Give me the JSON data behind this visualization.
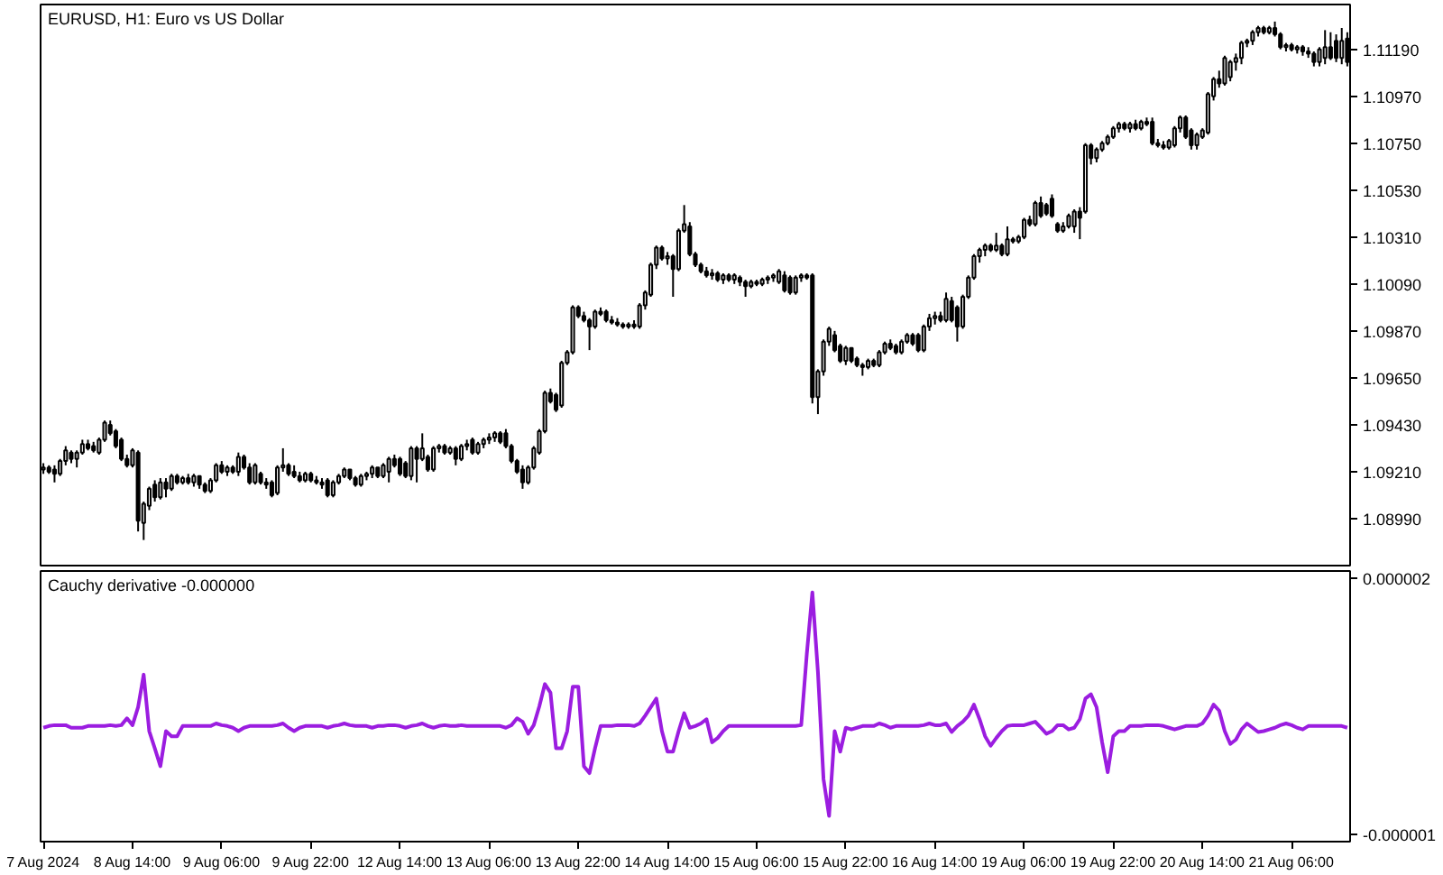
{
  "chart_data": [
    {
      "type": "candlestick",
      "title": "EURUSD, H1: Euro vs US Dollar",
      "color": "#000000",
      "categories": [
        "7 Aug 2024",
        null,
        null,
        null,
        null,
        null,
        null,
        null,
        null,
        null,
        null,
        null,
        null,
        null,
        null,
        null,
        "8 Aug 14:00",
        null,
        null,
        null,
        null,
        null,
        null,
        null,
        null,
        null,
        null,
        null,
        null,
        null,
        null,
        null,
        "9 Aug 06:00",
        null,
        null,
        null,
        null,
        null,
        null,
        null,
        null,
        null,
        null,
        null,
        null,
        null,
        null,
        null,
        "9 Aug 22:00",
        null,
        null,
        null,
        null,
        null,
        null,
        null,
        null,
        null,
        null,
        null,
        null,
        null,
        null,
        null,
        "12 Aug 14:00",
        null,
        null,
        null,
        null,
        null,
        null,
        null,
        null,
        null,
        null,
        null,
        null,
        null,
        null,
        null,
        "13 Aug 06:00",
        null,
        null,
        null,
        null,
        null,
        null,
        null,
        null,
        null,
        null,
        null,
        null,
        null,
        null,
        null,
        "13 Aug 22:00",
        null,
        null,
        null,
        null,
        null,
        null,
        null,
        null,
        null,
        null,
        null,
        null,
        null,
        null,
        null,
        "14 Aug 14:00",
        null,
        null,
        null,
        null,
        null,
        null,
        null,
        null,
        null,
        null,
        null,
        null,
        null,
        null,
        null,
        "15 Aug 06:00",
        null,
        null,
        null,
        null,
        null,
        null,
        null,
        null,
        null,
        null,
        null,
        null,
        null,
        null,
        null,
        "15 Aug 22:00",
        null,
        null,
        null,
        null,
        null,
        null,
        null,
        null,
        null,
        null,
        null,
        null,
        null,
        null,
        null,
        "16 Aug 14:00",
        null,
        null,
        null,
        null,
        null,
        null,
        null,
        null,
        null,
        null,
        null,
        null,
        null,
        null,
        null,
        "19 Aug 06:00",
        null,
        null,
        null,
        null,
        null,
        null,
        null,
        null,
        null,
        null,
        null,
        null,
        null,
        null,
        null,
        "19 Aug 22:00",
        null,
        null,
        null,
        null,
        null,
        null,
        null,
        null,
        null,
        null,
        null,
        null,
        null,
        null,
        null,
        "20 Aug 14:00",
        null,
        null,
        null,
        null,
        null,
        null,
        null,
        null,
        null,
        null,
        null,
        null,
        null,
        null,
        null,
        "21 Aug 06:00",
        null,
        null,
        null,
        null,
        null,
        null,
        null,
        null,
        null,
        null
      ],
      "ohlc": [
        [
          1.0922,
          1.0925,
          1.092,
          1.0923
        ],
        [
          1.0923,
          1.0924,
          1.092,
          1.0921
        ],
        [
          1.0922,
          1.0924,
          1.0916,
          1.092
        ],
        [
          1.092,
          1.0927,
          1.0919,
          1.0926
        ],
        [
          1.0926,
          1.0933,
          1.0924,
          1.0931
        ],
        [
          1.093,
          1.0931,
          1.0925,
          1.0927
        ],
        [
          1.0927,
          1.0931,
          1.0923,
          1.093
        ],
        [
          1.093,
          1.0936,
          1.0929,
          1.0934
        ],
        [
          1.0934,
          1.0936,
          1.0931,
          1.0932
        ],
        [
          1.0933,
          1.0935,
          1.093,
          1.0931
        ],
        [
          1.093,
          1.0937,
          1.0929,
          1.0936
        ],
        [
          1.0936,
          1.0945,
          1.0935,
          1.0944
        ],
        [
          1.0943,
          1.0945,
          1.0938,
          1.0939
        ],
        [
          1.094,
          1.0941,
          1.0932,
          1.0933
        ],
        [
          1.0936,
          1.0937,
          1.0926,
          1.0927
        ],
        [
          1.0927,
          1.0929,
          1.0923,
          1.0924
        ],
        [
          1.0924,
          1.0932,
          1.0923,
          1.0931
        ],
        [
          1.093,
          1.0931,
          1.0893,
          1.0898
        ],
        [
          1.0897,
          1.0907,
          1.0889,
          1.0906
        ],
        [
          1.0905,
          1.0914,
          1.0903,
          1.0913
        ],
        [
          1.0915,
          1.0917,
          1.0907,
          1.0909
        ],
        [
          1.0909,
          1.0918,
          1.0908,
          1.0916
        ],
        [
          1.0916,
          1.0918,
          1.0909,
          1.0913
        ],
        [
          1.0913,
          1.092,
          1.0912,
          1.0919
        ],
        [
          1.0919,
          1.092,
          1.0915,
          1.0916
        ],
        [
          1.0916,
          1.0919,
          1.0915,
          1.0918
        ],
        [
          1.0918,
          1.092,
          1.0915,
          1.0916
        ],
        [
          1.0916,
          1.092,
          1.0914,
          1.0919
        ],
        [
          1.0919,
          1.0919,
          1.0913,
          1.0915
        ],
        [
          1.0915,
          1.0916,
          1.0911,
          1.0912
        ],
        [
          1.0912,
          1.0918,
          1.0911,
          1.0917
        ],
        [
          1.0917,
          1.0925,
          1.0916,
          1.0924
        ],
        [
          1.0924,
          1.0926,
          1.092,
          1.0921
        ],
        [
          1.0921,
          1.0924,
          1.0919,
          1.0923
        ],
        [
          1.0923,
          1.0924,
          1.092,
          1.0921
        ],
        [
          1.0921,
          1.093,
          1.0919,
          1.0928
        ],
        [
          1.0928,
          1.0929,
          1.0922,
          1.0923
        ],
        [
          1.0923,
          1.0925,
          1.0915,
          1.0916
        ],
        [
          1.0916,
          1.0925,
          1.0915,
          1.0924
        ],
        [
          1.092,
          1.0921,
          1.0915,
          1.0916
        ],
        [
          1.0916,
          1.0918,
          1.0913,
          1.0915
        ],
        [
          1.0916,
          1.0917,
          1.0909,
          1.091
        ],
        [
          1.0911,
          1.0924,
          1.091,
          1.0923
        ],
        [
          1.0923,
          1.0932,
          1.0921,
          1.0924
        ],
        [
          1.0924,
          1.0925,
          1.0919,
          1.092
        ],
        [
          1.0921,
          1.0924,
          1.0918,
          1.0919
        ],
        [
          1.0919,
          1.0921,
          1.0916,
          1.0917
        ],
        [
          1.0917,
          1.0921,
          1.0916,
          1.092
        ],
        [
          1.092,
          1.0921,
          1.0916,
          1.0917
        ],
        [
          1.0917,
          1.0919,
          1.0915,
          1.0916
        ],
        [
          1.0916,
          1.0918,
          1.0913,
          1.0915
        ],
        [
          1.0917,
          1.0918,
          1.0909,
          1.091
        ],
        [
          1.091,
          1.0917,
          1.0909,
          1.0916
        ],
        [
          1.0916,
          1.092,
          1.0915,
          1.0919
        ],
        [
          1.0919,
          1.0923,
          1.0918,
          1.0922
        ],
        [
          1.0922,
          1.0922,
          1.0917,
          1.0918
        ],
        [
          1.0918,
          1.0919,
          1.0914,
          1.0915
        ],
        [
          1.0915,
          1.092,
          1.0914,
          1.0919
        ],
        [
          1.0919,
          1.0921,
          1.0917,
          1.092
        ],
        [
          1.092,
          1.0924,
          1.0918,
          1.0923
        ],
        [
          1.0923,
          1.0923,
          1.0918,
          1.0919
        ],
        [
          1.0919,
          1.0925,
          1.0918,
          1.0924
        ],
        [
          1.0921,
          1.0928,
          1.0916,
          1.0927
        ],
        [
          1.0927,
          1.0929,
          1.0923,
          1.0924
        ],
        [
          1.0927,
          1.0928,
          1.0919,
          1.092
        ],
        [
          1.0925,
          1.0926,
          1.0918,
          1.0919
        ],
        [
          1.0919,
          1.0933,
          1.0917,
          1.0932
        ],
        [
          1.0932,
          1.0933,
          1.0916,
          1.0927
        ],
        [
          1.0927,
          1.0939,
          1.0926,
          1.0932
        ],
        [
          1.0928,
          1.0929,
          1.0921,
          1.0922
        ],
        [
          1.0922,
          1.0933,
          1.0921,
          1.0932
        ],
        [
          1.0932,
          1.0934,
          1.093,
          1.0933
        ],
        [
          1.0933,
          1.0934,
          1.0929,
          1.093
        ],
        [
          1.093,
          1.0933,
          1.0929,
          1.0932
        ],
        [
          1.0932,
          1.0933,
          1.0924,
          1.0927
        ],
        [
          1.0927,
          1.0934,
          1.0926,
          1.0933
        ],
        [
          1.0933,
          1.0936,
          1.0931,
          1.0934
        ],
        [
          1.0936,
          1.0937,
          1.0929,
          1.093
        ],
        [
          1.093,
          1.0935,
          1.0929,
          1.0934
        ],
        [
          1.0934,
          1.0937,
          1.0932,
          1.0936
        ],
        [
          1.0936,
          1.0939,
          1.0934,
          1.0937
        ],
        [
          1.0937,
          1.094,
          1.0935,
          1.0939
        ],
        [
          1.0939,
          1.094,
          1.0934,
          1.0935
        ],
        [
          1.0939,
          1.0941,
          1.0932,
          1.0933
        ],
        [
          1.0933,
          1.0934,
          1.0925,
          1.0926
        ],
        [
          1.0926,
          1.0927,
          1.092,
          1.0921
        ],
        [
          1.0922,
          1.0924,
          1.0913,
          1.0916
        ],
        [
          1.0916,
          1.0924,
          1.0915,
          1.0923
        ],
        [
          1.0923,
          1.0933,
          1.0922,
          1.0932
        ],
        [
          1.093,
          1.0941,
          1.0929,
          1.094
        ],
        [
          1.094,
          1.0959,
          1.0939,
          1.0958
        ],
        [
          1.0958,
          1.096,
          1.0953,
          1.0954
        ],
        [
          1.0957,
          1.0958,
          1.0949,
          1.095
        ],
        [
          1.0952,
          1.0973,
          1.0951,
          1.0972
        ],
        [
          1.0972,
          1.0978,
          1.0971,
          1.0977
        ],
        [
          1.0977,
          1.0999,
          1.0976,
          1.0998
        ],
        [
          1.0998,
          1.0999,
          1.0993,
          1.0994
        ],
        [
          1.0994,
          1.0996,
          1.0991,
          1.0992
        ],
        [
          1.0992,
          1.0993,
          1.0978,
          1.0989
        ],
        [
          1.0989,
          1.0997,
          1.0988,
          1.0996
        ],
        [
          1.0996,
          1.0998,
          1.0994,
          1.0995
        ],
        [
          1.0996,
          1.0997,
          1.0991,
          1.0992
        ],
        [
          1.0992,
          1.0994,
          1.099,
          1.0991
        ],
        [
          1.0991,
          1.0993,
          1.0989,
          1.099
        ],
        [
          1.099,
          1.0991,
          1.0988,
          1.0989
        ],
        [
          1.0989,
          1.0991,
          1.0988,
          1.099
        ],
        [
          1.099,
          1.0992,
          1.0988,
          1.0989
        ],
        [
          1.0989,
          1.1,
          1.0988,
          1.0999
        ],
        [
          1.0999,
          1.1006,
          1.0997,
          1.1005
        ],
        [
          1.1004,
          1.1019,
          1.1003,
          1.1018
        ],
        [
          1.1018,
          1.1027,
          1.1016,
          1.1026
        ],
        [
          1.1026,
          1.1027,
          1.102,
          1.1021
        ],
        [
          1.1021,
          1.1024,
          1.1018,
          1.1022
        ],
        [
          1.1022,
          1.1023,
          1.1003,
          1.1016
        ],
        [
          1.1016,
          1.1035,
          1.1015,
          1.1034
        ],
        [
          1.1034,
          1.1046,
          1.1033,
          1.1037
        ],
        [
          1.1036,
          1.1038,
          1.1022,
          1.1023
        ],
        [
          1.1023,
          1.1024,
          1.1017,
          1.1018
        ],
        [
          1.1018,
          1.1019,
          1.1014,
          1.1015
        ],
        [
          1.1015,
          1.1017,
          1.1012,
          1.1013
        ],
        [
          1.1013,
          1.1016,
          1.1011,
          1.1014
        ],
        [
          1.1014,
          1.1015,
          1.101,
          1.1011
        ],
        [
          1.1011,
          1.1014,
          1.1009,
          1.1013
        ],
        [
          1.1013,
          1.1014,
          1.101,
          1.1011
        ],
        [
          1.1011,
          1.1014,
          1.1009,
          1.1013
        ],
        [
          1.1012,
          1.1013,
          1.1008,
          1.101
        ],
        [
          1.101,
          1.1011,
          1.1003,
          1.1008
        ],
        [
          1.1008,
          1.1011,
          1.1007,
          1.101
        ],
        [
          1.101,
          1.1011,
          1.1008,
          1.1009
        ],
        [
          1.1009,
          1.1012,
          1.1008,
          1.1011
        ],
        [
          1.1011,
          1.1013,
          1.1009,
          1.1012
        ],
        [
          1.1012,
          1.1014,
          1.101,
          1.1013
        ],
        [
          1.101,
          1.1016,
          1.1009,
          1.1015
        ],
        [
          1.1013,
          1.1015,
          1.1005,
          1.1006
        ],
        [
          1.1012,
          1.1013,
          1.1004,
          1.1005
        ],
        [
          1.1005,
          1.1013,
          1.1004,
          1.1012
        ],
        [
          1.1012,
          1.1014,
          1.101,
          1.1013
        ],
        [
          1.1013,
          1.1014,
          1.1011,
          1.1012
        ],
        [
          1.1013,
          1.1014,
          1.0953,
          1.0956
        ],
        [
          1.0956,
          1.0969,
          1.0948,
          1.0968
        ],
        [
          1.0968,
          1.0983,
          1.0966,
          1.0982
        ],
        [
          1.0982,
          1.0989,
          1.098,
          1.0988
        ],
        [
          1.0985,
          1.0987,
          1.0977,
          1.0978
        ],
        [
          1.098,
          1.0981,
          1.0972,
          1.0973
        ],
        [
          1.0973,
          1.098,
          1.0971,
          1.0979
        ],
        [
          1.0979,
          1.0979,
          1.0972,
          1.0973
        ],
        [
          1.0974,
          1.0975,
          1.097,
          1.0971
        ],
        [
          1.0971,
          1.0972,
          1.0966,
          1.097
        ],
        [
          1.097,
          1.0974,
          1.0969,
          1.0973
        ],
        [
          1.0973,
          1.0974,
          1.097,
          1.0971
        ],
        [
          1.0971,
          1.0978,
          1.097,
          1.0977
        ],
        [
          1.0977,
          1.0982,
          1.0976,
          1.0981
        ],
        [
          1.0981,
          1.0983,
          1.0978,
          1.0979
        ],
        [
          1.098,
          1.0981,
          1.0976,
          1.0977
        ],
        [
          1.0977,
          1.0983,
          1.0976,
          1.0982
        ],
        [
          1.0982,
          1.0986,
          1.0981,
          1.0985
        ],
        [
          1.0985,
          1.0986,
          1.098,
          1.0981
        ],
        [
          1.0985,
          1.0986,
          1.0977,
          1.0978
        ],
        [
          1.0978,
          1.099,
          1.0977,
          1.0989
        ],
        [
          1.0989,
          1.0995,
          1.0987,
          1.0993
        ],
        [
          1.0993,
          1.0996,
          1.099,
          1.0994
        ],
        [
          1.0994,
          1.0996,
          1.0991,
          1.0992
        ],
        [
          1.0992,
          1.1005,
          1.0991,
          1.1002
        ],
        [
          1.1001,
          1.1003,
          1.0991,
          1.0992
        ],
        [
          1.0998,
          1.0999,
          1.0982,
          1.0989
        ],
        [
          1.0989,
          1.1004,
          1.0988,
          1.1003
        ],
        [
          1.1003,
          1.1013,
          1.1002,
          1.1012
        ],
        [
          1.1012,
          1.1023,
          1.1011,
          1.1022
        ],
        [
          1.1022,
          1.1026,
          1.1019,
          1.1025
        ],
        [
          1.1025,
          1.1028,
          1.1022,
          1.1027
        ],
        [
          1.1027,
          1.1028,
          1.1024,
          1.1025
        ],
        [
          1.1025,
          1.1033,
          1.1024,
          1.1027
        ],
        [
          1.1027,
          1.1028,
          1.1022,
          1.1023
        ],
        [
          1.1023,
          1.1036,
          1.1022,
          1.103
        ],
        [
          1.103,
          1.1031,
          1.1028,
          1.1029
        ],
        [
          1.1029,
          1.1032,
          1.1028,
          1.1031
        ],
        [
          1.1031,
          1.104,
          1.103,
          1.1039
        ],
        [
          1.1039,
          1.1041,
          1.1036,
          1.1037
        ],
        [
          1.1037,
          1.1048,
          1.1036,
          1.1047
        ],
        [
          1.1047,
          1.105,
          1.104,
          1.1041
        ],
        [
          1.1046,
          1.1047,
          1.1041,
          1.1042
        ],
        [
          1.1049,
          1.1051,
          1.104,
          1.1041
        ],
        [
          1.1037,
          1.1038,
          1.1033,
          1.1034
        ],
        [
          1.1034,
          1.1038,
          1.1033,
          1.1036
        ],
        [
          1.1036,
          1.1042,
          1.1035,
          1.1041
        ],
        [
          1.1036,
          1.1044,
          1.1033,
          1.1043
        ],
        [
          1.1043,
          1.1045,
          1.103,
          1.104
        ],
        [
          1.1043,
          1.1075,
          1.1042,
          1.1074
        ],
        [
          1.1074,
          1.1075,
          1.1065,
          1.1068
        ],
        [
          1.1068,
          1.1073,
          1.1066,
          1.1072
        ],
        [
          1.1072,
          1.1076,
          1.1071,
          1.1075
        ],
        [
          1.1075,
          1.1079,
          1.1074,
          1.1078
        ],
        [
          1.1078,
          1.1083,
          1.1077,
          1.1082
        ],
        [
          1.1082,
          1.1085,
          1.108,
          1.1084
        ],
        [
          1.1084,
          1.1085,
          1.1081,
          1.1082
        ],
        [
          1.1082,
          1.1085,
          1.108,
          1.1084
        ],
        [
          1.1084,
          1.1086,
          1.1081,
          1.1082
        ],
        [
          1.1082,
          1.1086,
          1.1081,
          1.1085
        ],
        [
          1.1085,
          1.1087,
          1.1083,
          1.1084
        ],
        [
          1.1085,
          1.1087,
          1.1074,
          1.1075
        ],
        [
          1.1075,
          1.1077,
          1.1073,
          1.1074
        ],
        [
          1.1074,
          1.1076,
          1.1072,
          1.1073
        ],
        [
          1.1073,
          1.1077,
          1.1072,
          1.1076
        ],
        [
          1.1074,
          1.1083,
          1.1073,
          1.1082
        ],
        [
          1.1082,
          1.1088,
          1.108,
          1.1087
        ],
        [
          1.1087,
          1.1088,
          1.1077,
          1.1078
        ],
        [
          1.1081,
          1.1082,
          1.1072,
          1.1074
        ],
        [
          1.1074,
          1.108,
          1.1072,
          1.1079
        ],
        [
          1.1078,
          1.1082,
          1.1077,
          1.1081
        ],
        [
          1.108,
          1.1099,
          1.1079,
          1.1098
        ],
        [
          1.1097,
          1.1106,
          1.1095,
          1.1105
        ],
        [
          1.1105,
          1.1109,
          1.1101,
          1.1103
        ],
        [
          1.1103,
          1.1116,
          1.1102,
          1.1115
        ],
        [
          1.1106,
          1.1114,
          1.1104,
          1.1113
        ],
        [
          1.1113,
          1.1117,
          1.1109,
          1.1115
        ],
        [
          1.1115,
          1.1123,
          1.1112,
          1.1122
        ],
        [
          1.1122,
          1.1124,
          1.112,
          1.1123
        ],
        [
          1.1123,
          1.1128,
          1.1121,
          1.1127
        ],
        [
          1.1127,
          1.113,
          1.1125,
          1.1129
        ],
        [
          1.1129,
          1.113,
          1.1126,
          1.1127
        ],
        [
          1.1127,
          1.113,
          1.1126,
          1.1129
        ],
        [
          1.1129,
          1.1132,
          1.1125,
          1.1126
        ],
        [
          1.1126,
          1.1127,
          1.1119,
          1.112
        ],
        [
          1.112,
          1.1122,
          1.1118,
          1.1121
        ],
        [
          1.1121,
          1.1122,
          1.1118,
          1.1119
        ],
        [
          1.1119,
          1.1121,
          1.1117,
          1.112
        ],
        [
          1.112,
          1.1121,
          1.1116,
          1.1118
        ],
        [
          1.1118,
          1.112,
          1.1115,
          1.1117
        ],
        [
          1.1117,
          1.1118,
          1.1111,
          1.1113
        ],
        [
          1.1113,
          1.112,
          1.1111,
          1.1119
        ],
        [
          1.1115,
          1.1128,
          1.1112,
          1.112
        ],
        [
          1.112,
          1.1127,
          1.1114,
          1.1115
        ],
        [
          1.1123,
          1.1126,
          1.1113,
          1.1115
        ],
        [
          1.1115,
          1.1129,
          1.1112,
          1.1123
        ],
        [
          1.1124,
          1.1127,
          1.1111,
          1.1113
        ]
      ],
      "ylim": [
        1.0877,
        1.114
      ],
      "yticks": [
        {
          "value": 1.0899,
          "label": "1.08990"
        },
        {
          "value": 1.0921,
          "label": "1.09210"
        },
        {
          "value": 1.0943,
          "label": "1.09430"
        },
        {
          "value": 1.0965,
          "label": "1.09650"
        },
        {
          "value": 1.0987,
          "label": "1.09870"
        },
        {
          "value": 1.1009,
          "label": "1.10090"
        },
        {
          "value": 1.1031,
          "label": "1.10310"
        },
        {
          "value": 1.1053,
          "label": "1.10530"
        },
        {
          "value": 1.1075,
          "label": "1.10750"
        },
        {
          "value": 1.1097,
          "label": "1.10970"
        },
        {
          "value": 1.1119,
          "label": "1.11190"
        }
      ],
      "tick_labels": "y"
    },
    {
      "type": "line",
      "title": "Cauchy derivative -0.000000",
      "categories": [
        "7 Aug 2024",
        null,
        null,
        null,
        null,
        null,
        null,
        null,
        null,
        null,
        null,
        null,
        null,
        null,
        null,
        null,
        "8 Aug 14:00",
        null,
        null,
        null,
        null,
        null,
        null,
        null,
        null,
        null,
        null,
        null,
        null,
        null,
        null,
        null,
        "9 Aug 06:00",
        null,
        null,
        null,
        null,
        null,
        null,
        null,
        null,
        null,
        null,
        null,
        null,
        null,
        null,
        null,
        "9 Aug 22:00",
        null,
        null,
        null,
        null,
        null,
        null,
        null,
        null,
        null,
        null,
        null,
        null,
        null,
        null,
        null,
        "12 Aug 14:00",
        null,
        null,
        null,
        null,
        null,
        null,
        null,
        null,
        null,
        null,
        null,
        null,
        null,
        null,
        null,
        "13 Aug 06:00",
        null,
        null,
        null,
        null,
        null,
        null,
        null,
        null,
        null,
        null,
        null,
        null,
        null,
        null,
        null,
        "13 Aug 22:00",
        null,
        null,
        null,
        null,
        null,
        null,
        null,
        null,
        null,
        null,
        null,
        null,
        null,
        null,
        null,
        "14 Aug 14:00",
        null,
        null,
        null,
        null,
        null,
        null,
        null,
        null,
        null,
        null,
        null,
        null,
        null,
        null,
        null,
        "15 Aug 06:00",
        null,
        null,
        null,
        null,
        null,
        null,
        null,
        null,
        null,
        null,
        null,
        null,
        null,
        null,
        null,
        "15 Aug 22:00",
        null,
        null,
        null,
        null,
        null,
        null,
        null,
        null,
        null,
        null,
        null,
        null,
        null,
        null,
        null,
        "16 Aug 14:00",
        null,
        null,
        null,
        null,
        null,
        null,
        null,
        null,
        null,
        null,
        null,
        null,
        null,
        null,
        null,
        "19 Aug 06:00",
        null,
        null,
        null,
        null,
        null,
        null,
        null,
        null,
        null,
        null,
        null,
        null,
        null,
        null,
        null,
        "19 Aug 22:00",
        null,
        null,
        null,
        null,
        null,
        null,
        null,
        null,
        null,
        null,
        null,
        null,
        null,
        null,
        null,
        "20 Aug 14:00",
        null,
        null,
        null,
        null,
        null,
        null,
        null,
        null,
        null,
        null,
        null,
        null,
        null,
        null,
        null,
        "21 Aug 06:00",
        null,
        null,
        null,
        null,
        null,
        null,
        null,
        null,
        null,
        null
      ],
      "series": [
        {
          "color": "#9b1de0",
          "values": [
            2.5e-07,
            2.7e-07,
            2.8e-07,
            2.8e-07,
            2.8e-07,
            2.5e-07,
            2.5e-07,
            2.5e-07,
            2.7e-07,
            2.7e-07,
            2.7e-07,
            2.7e-07,
            2.8e-07,
            2.7e-07,
            2.8e-07,
            3.6e-07,
            2.8e-07,
            4.9e-07,
            8.7e-07,
            2.1e-07,
            1e-08,
            -2e-07,
            2.1e-07,
            1.5e-07,
            1.5e-07,
            2.7e-07,
            2.7e-07,
            2.7e-07,
            2.7e-07,
            2.7e-07,
            2.7e-07,
            3e-07,
            2.8e-07,
            2.7e-07,
            2.5e-07,
            2.1e-07,
            2.5e-07,
            2.7e-07,
            2.7e-07,
            2.7e-07,
            2.7e-07,
            2.7e-07,
            2.8e-07,
            3e-07,
            2.5e-07,
            2.1e-07,
            2.5e-07,
            2.7e-07,
            2.7e-07,
            2.7e-07,
            2.7e-07,
            2.5e-07,
            2.7e-07,
            2.8e-07,
            3e-07,
            2.8e-07,
            2.7e-07,
            2.7e-07,
            2.7e-07,
            2.5e-07,
            2.7e-07,
            2.7e-07,
            2.8e-07,
            2.8e-07,
            2.7e-07,
            2.5e-07,
            2.7e-07,
            2.8e-07,
            3e-07,
            2.7e-07,
            2.5e-07,
            2.7e-07,
            2.8e-07,
            2.7e-07,
            2.7e-07,
            2.8e-07,
            2.7e-07,
            2.7e-07,
            2.7e-07,
            2.7e-07,
            2.7e-07,
            2.7e-07,
            2.7e-07,
            2.5e-07,
            2.8e-07,
            3.6e-07,
            3.2e-07,
            1.8e-07,
            2.8e-07,
            5e-07,
            7.6e-07,
            6.6e-07,
            1e-08,
            1e-08,
            2.1e-07,
            7.3e-07,
            7.3e-07,
            -2e-07,
            -2.8e-07,
            1e-08,
            2.7e-07,
            2.7e-07,
            2.7e-07,
            2.8e-07,
            2.8e-07,
            2.8e-07,
            2.7e-07,
            3e-07,
            3.9e-07,
            4.9e-07,
            5.9e-07,
            2.1e-07,
            -3e-08,
            -3e-08,
            2.1e-07,
            4.2e-07,
            2.5e-07,
            2.7e-07,
            3e-07,
            3.5e-07,
            8e-08,
            1.3e-07,
            2.1e-07,
            2.7e-07,
            2.7e-07,
            2.7e-07,
            2.7e-07,
            2.7e-07,
            2.7e-07,
            2.7e-07,
            2.7e-07,
            2.7e-07,
            2.7e-07,
            2.7e-07,
            2.7e-07,
            2.7e-07,
            2.8e-07,
            1.11e-06,
            1.83e-06,
            9e-07,
            -3.5e-07,
            -7.8e-07,
            2.1e-07,
            -3e-08,
            2.5e-07,
            2.3e-07,
            2.5e-07,
            2.7e-07,
            2.7e-07,
            2.7e-07,
            3e-07,
            2.8e-07,
            2.5e-07,
            2.7e-07,
            2.7e-07,
            2.7e-07,
            2.7e-07,
            2.7e-07,
            2.8e-07,
            3e-07,
            2.8e-07,
            2.8e-07,
            3e-07,
            2e-07,
            2.7e-07,
            3.2e-07,
            3.9e-07,
            5.2e-07,
            3.5e-07,
            1.5e-07,
            4e-08,
            1.3e-07,
            2.1e-07,
            2.7e-07,
            2.8e-07,
            2.8e-07,
            2.8e-07,
            3e-07,
            3.2e-07,
            2.5e-07,
            1.8e-07,
            2.1e-07,
            2.8e-07,
            2.8e-07,
            2.3e-07,
            2.5e-07,
            3.5e-07,
            5.9e-07,
            6.4e-07,
            4.9e-07,
            8e-08,
            -2.7e-07,
            1.5e-07,
            2.1e-07,
            2.1e-07,
            2.7e-07,
            2.7e-07,
            2.7e-07,
            2.8e-07,
            2.8e-07,
            2.8e-07,
            2.7e-07,
            2.5e-07,
            2.3e-07,
            2.5e-07,
            2.7e-07,
            2.7e-07,
            2.7e-07,
            3e-07,
            3.9e-07,
            5.2e-07,
            4.5e-07,
            2.1e-07,
            6e-08,
            1.1e-07,
            2.3e-07,
            3e-07,
            2.5e-07,
            2e-07,
            2.1e-07,
            2.3e-07,
            2.5e-07,
            2.8e-07,
            3e-07,
            2.8e-07,
            2.5e-07,
            2.3e-07,
            2.7e-07,
            2.7e-07,
            2.7e-07,
            2.7e-07,
            2.7e-07,
            2.7e-07,
            2.7e-07,
            2.5e-07
          ]
        }
      ],
      "ylim": [
        -1.08e-06,
        2.08e-06
      ],
      "yticks": [
        {
          "value": -1e-06,
          "label": "-0.000001"
        },
        {
          "value": 2e-06,
          "label": "0.000002"
        }
      ]
    }
  ]
}
